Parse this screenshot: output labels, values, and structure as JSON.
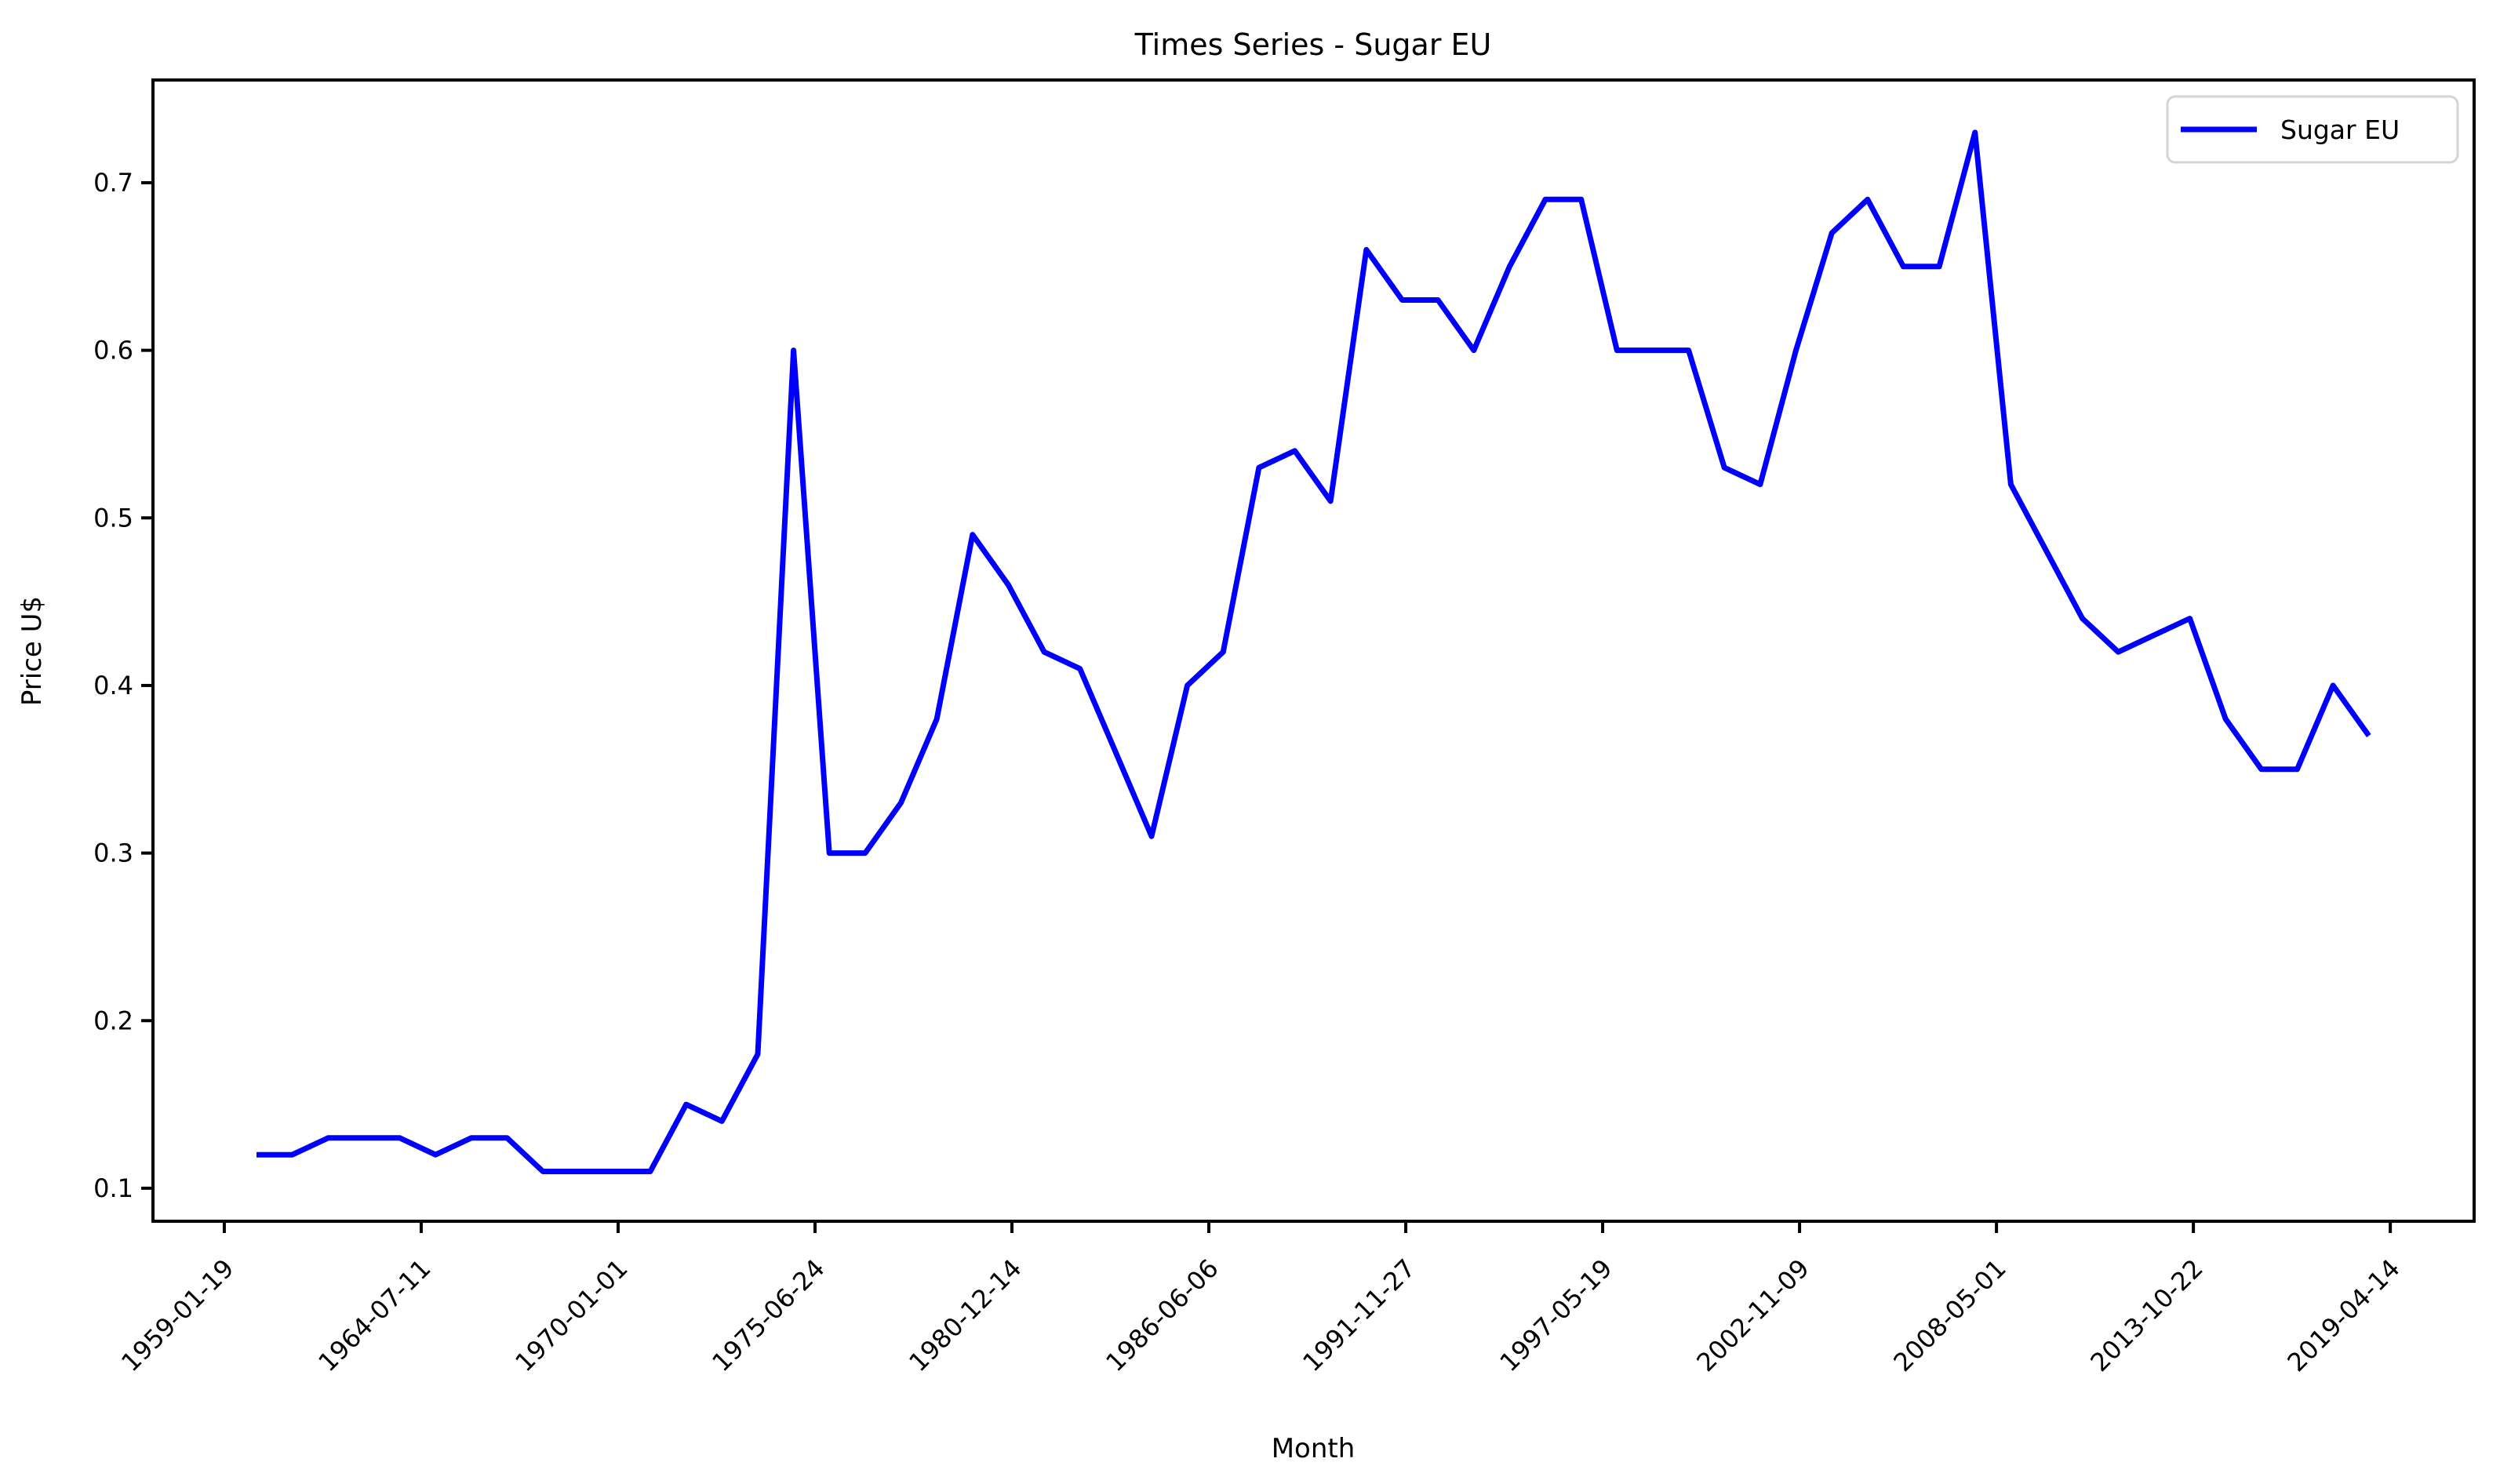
{
  "chart_data": {
    "type": "line",
    "title": "Times Series - Sugar EU",
    "xlabel": "Month",
    "ylabel": "Price U$",
    "grid": false,
    "background_color": "#ffffff",
    "ylim": [
      0.0803,
      0.7613
    ],
    "y_ticks": [
      "0.1",
      "0.2",
      "0.3",
      "0.4",
      "0.5",
      "0.6",
      "0.7"
    ],
    "x_tick_labels": [
      "1959-01-19",
      "1964-07-11",
      "1970-01-01",
      "1975-06-24",
      "1980-12-14",
      "1986-06-06",
      "1991-11-27",
      "1997-05-19",
      "2002-11-09",
      "2008-05-01",
      "2013-10-22",
      "2019-04-14"
    ],
    "x_tick_positions_index": [
      -0.9,
      4.6,
      10.1,
      15.6,
      21.1,
      26.6,
      32.1,
      37.6,
      43.1,
      48.6,
      54.1,
      59.6
    ],
    "legend": {
      "position": "upper right",
      "entries": [
        {
          "label": "Sugar EU",
          "color": "#0000ff"
        }
      ]
    },
    "series": [
      {
        "name": "Sugar EU",
        "color": "#0000ff",
        "values": [
          0.12,
          0.12,
          0.13,
          0.13,
          0.13,
          0.12,
          0.13,
          0.13,
          0.11,
          0.11,
          0.11,
          0.11,
          0.15,
          0.14,
          0.18,
          0.6,
          0.3,
          0.3,
          0.33,
          0.38,
          0.49,
          0.46,
          0.42,
          0.41,
          0.36,
          0.31,
          0.4,
          0.42,
          0.53,
          0.54,
          0.51,
          0.66,
          0.63,
          0.63,
          0.6,
          0.65,
          0.69,
          0.69,
          0.6,
          0.6,
          0.6,
          0.53,
          0.52,
          0.6,
          0.67,
          0.69,
          0.65,
          0.65,
          0.73,
          0.52,
          0.48,
          0.44,
          0.42,
          0.43,
          0.44,
          0.38,
          0.35,
          0.35,
          0.4,
          0.37
        ]
      }
    ]
  }
}
